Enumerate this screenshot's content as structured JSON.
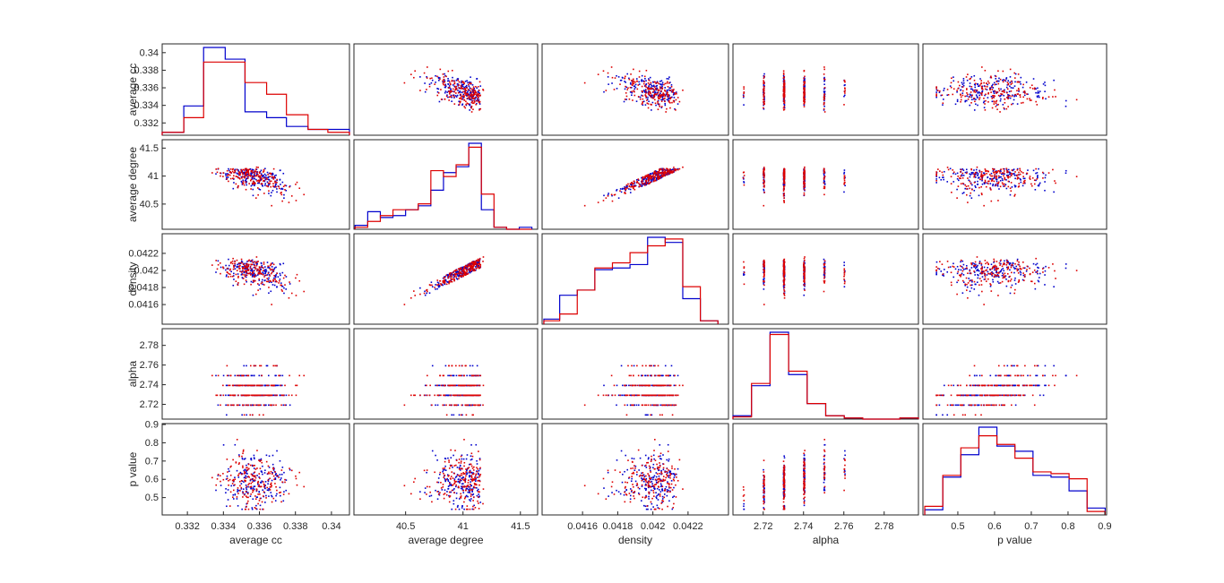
{
  "chart_data": {
    "type": "scatter",
    "variables": [
      "average cc",
      "average degree",
      "density",
      "alpha",
      "p value"
    ],
    "series": [
      {
        "name": "",
        "color": "#0000cc"
      },
      {
        "name": "",
        "color": "#dd0000"
      }
    ],
    "ranges": [
      [
        0.3306,
        0.341
      ],
      [
        40.05,
        41.65
      ],
      [
        0.04137,
        0.04243
      ],
      [
        2.705,
        2.797
      ],
      [
        0.405,
        0.905
      ]
    ],
    "ticks": [
      [
        0.332,
        0.334,
        0.336,
        0.338,
        0.34
      ],
      [
        40.5,
        41,
        41.5
      ],
      [
        0.0416,
        0.0418,
        0.042,
        0.0422
      ],
      [
        2.72,
        2.74,
        2.76,
        2.78
      ],
      [
        0.5,
        0.6,
        0.7,
        0.8,
        0.9
      ]
    ],
    "tick_labels": [
      [
        "0.332",
        "0.334",
        "0.336",
        "0.338",
        "0.34"
      ],
      [
        "40.5",
        "41",
        "41.5"
      ],
      [
        "0.0416",
        "0.0418",
        "0.042",
        "0.0422"
      ],
      [
        "2.72",
        "2.74",
        "2.76",
        "2.78"
      ],
      [
        "0.5",
        "0.6",
        "0.7",
        "0.8",
        "0.9"
      ]
    ],
    "histograms": [
      {
        "edges": [
          0.3306,
          0.3318,
          0.3329,
          0.3341,
          0.3352,
          0.3364,
          0.3375,
          0.3387,
          0.3398,
          0.341
        ],
        "blue": [
          1,
          10,
          30,
          26,
          8,
          6,
          3,
          2,
          2
        ],
        "red": [
          1,
          6,
          25,
          25,
          18,
          14,
          7,
          2,
          1
        ]
      },
      {
        "edges": [
          40.06,
          40.17,
          40.28,
          40.39,
          40.5,
          40.61,
          40.72,
          40.83,
          40.94,
          41.05,
          41.16,
          41.27,
          41.38,
          41.49,
          41.6
        ],
        "blue": [
          2,
          9,
          6,
          7,
          10,
          12,
          20,
          29,
          32,
          44,
          10,
          1,
          0,
          1
        ],
        "red": [
          1,
          4,
          7,
          10,
          10,
          13,
          30,
          27,
          33,
          42,
          18,
          1,
          0,
          0
        ]
      },
      {
        "edges": [
          0.04138,
          0.04147,
          0.04157,
          0.04167,
          0.04177,
          0.04187,
          0.04197,
          0.04207,
          0.04217,
          0.04227,
          0.04237
        ],
        "blue": [
          3,
          17,
          20,
          32,
          33,
          35,
          51,
          48,
          15,
          2
        ],
        "red": [
          2,
          6,
          20,
          33,
          36,
          42,
          46,
          50,
          22,
          2
        ]
      },
      {
        "edges": [
          2.705,
          2.7142,
          2.7234,
          2.7326,
          2.7418,
          2.751,
          2.7602,
          2.7694,
          2.7786,
          2.7878,
          2.797
        ],
        "blue": [
          3,
          30,
          78,
          40,
          14,
          3,
          1,
          0,
          0,
          1
        ],
        "red": [
          2,
          32,
          76,
          43,
          14,
          3,
          1,
          0,
          0,
          1
        ]
      },
      {
        "edges": [
          0.41,
          0.4591,
          0.5082,
          0.5573,
          0.6064,
          0.6555,
          0.7046,
          0.7537,
          0.8028,
          0.8519,
          0.901
        ],
        "blue": [
          3,
          22,
          35,
          51,
          40,
          37,
          23,
          22,
          14,
          4
        ],
        "red": [
          5,
          23,
          39,
          46,
          41,
          33,
          25,
          24,
          21,
          2
        ]
      }
    ]
  }
}
